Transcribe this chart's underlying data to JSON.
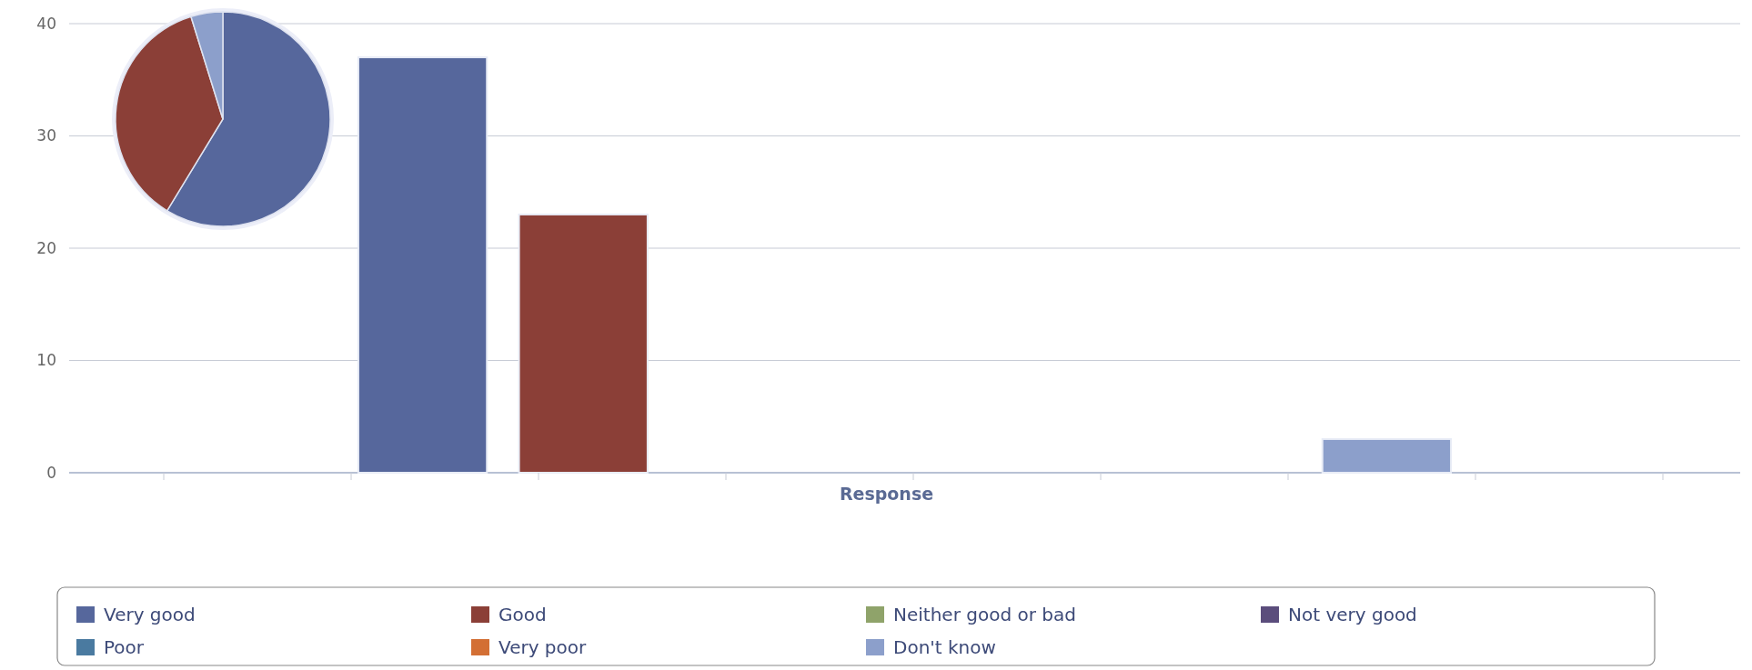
{
  "chart_data": [
    {
      "type": "bar",
      "categories": [
        null
      ],
      "xlabel": "Response",
      "ylim": [
        0,
        40
      ],
      "yticks": [
        0,
        10,
        20,
        30,
        40
      ],
      "grid": "y",
      "legend": "bottom",
      "series": [
        {
          "name": "Very good",
          "color": "#56679c",
          "values": [
            37
          ]
        },
        {
          "name": "Good",
          "color": "#8b3f37",
          "values": [
            23
          ]
        },
        {
          "name": "Neither good or bad",
          "color": "#8fa36a",
          "values": [
            0
          ]
        },
        {
          "name": "Not very good",
          "color": "#5b4d7c",
          "values": [
            0
          ]
        },
        {
          "name": "Poor",
          "color": "#4a7aa0",
          "values": [
            0
          ]
        },
        {
          "name": "Very poor",
          "color": "#d36f34",
          "values": [
            0
          ]
        },
        {
          "name": "Don't know",
          "color": "#8c9fcb",
          "values": [
            3
          ]
        }
      ]
    },
    {
      "type": "pie",
      "categories": [
        null,
        null,
        null
      ],
      "values": [
        58.7,
        36.5,
        4.8
      ],
      "colors": [
        "#56679c",
        "#8b3f37",
        "#8c9fcb"
      ]
    }
  ]
}
